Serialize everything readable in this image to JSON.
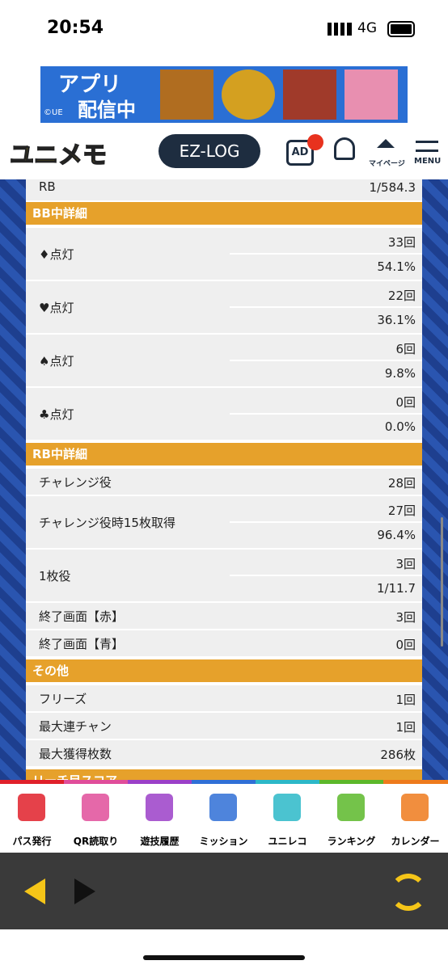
{
  "status_bar": {
    "time": "20:54",
    "network": "4G"
  },
  "banner": {
    "line1": "アプリ",
    "line2": "配信中",
    "copyright": "©UE"
  },
  "header": {
    "logo": "ユニメモ",
    "ezlog": "EZ-LOG",
    "ad": "AD",
    "mypage": "マイページ",
    "menu": "MENU"
  },
  "top_row": {
    "label": "RB",
    "values": [
      "1/584.3"
    ]
  },
  "sections": [
    {
      "title": "BB中詳細",
      "rows": [
        {
          "label": "♦点灯",
          "values": [
            "33回",
            "54.1%"
          ]
        },
        {
          "label": "♥点灯",
          "values": [
            "22回",
            "36.1%"
          ]
        },
        {
          "label": "♠点灯",
          "values": [
            "6回",
            "9.8%"
          ]
        },
        {
          "label": "♣点灯",
          "values": [
            "0回",
            "0.0%"
          ]
        }
      ]
    },
    {
      "title": "RB中詳細",
      "rows": [
        {
          "label": "チャレンジ役",
          "values": [
            "28回"
          ]
        },
        {
          "label": "チャレンジ役時15枚取得",
          "values": [
            "27回",
            "96.4%"
          ]
        },
        {
          "label": "1枚役",
          "values": [
            "3回",
            "1/11.7"
          ]
        },
        {
          "label": "終了画面【赤】",
          "values": [
            "3回"
          ]
        },
        {
          "label": "終了画面【青】",
          "values": [
            "0回"
          ]
        }
      ]
    },
    {
      "title": "その他",
      "rows": [
        {
          "label": "フリーズ",
          "values": [
            "1回"
          ]
        },
        {
          "label": "最大連チャン",
          "values": [
            "1回"
          ]
        },
        {
          "label": "最大獲得枚数",
          "values": [
            "286枚"
          ]
        }
      ]
    },
    {
      "title": "リーチ目スコア",
      "rows": []
    }
  ],
  "tabs": [
    "パス発行",
    "QR読取り",
    "遊技履歴",
    "ミッション",
    "ユニレコ",
    "ランキング",
    "カレンダー"
  ]
}
